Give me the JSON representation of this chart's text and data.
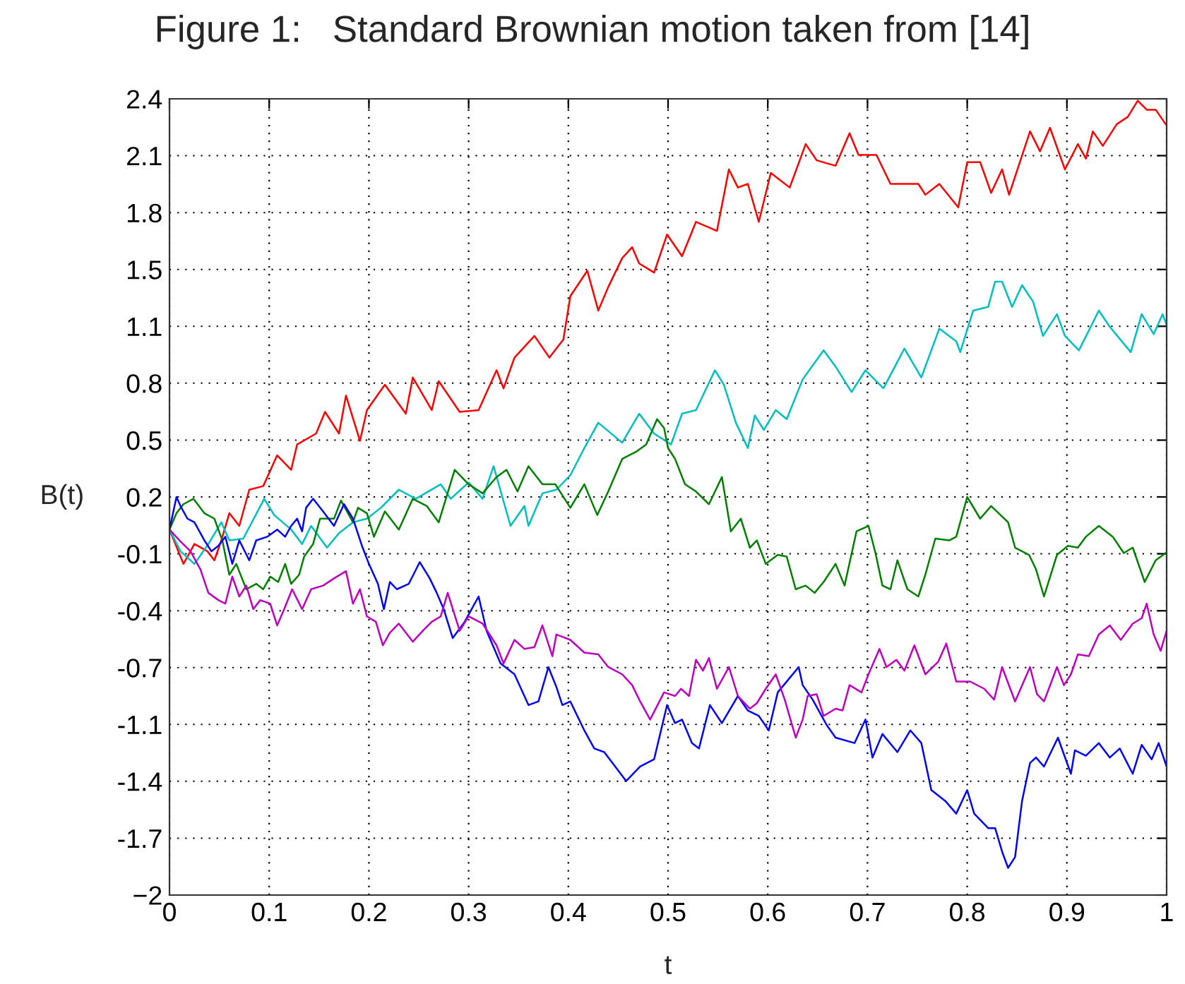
{
  "chart_data": {
    "type": "line",
    "title": "Figure 1:   Standard Brownian motion taken from [14]",
    "xlabel": "t",
    "ylabel": "B(t)",
    "xlim": [
      0,
      1
    ],
    "xticks": [
      0,
      0.1,
      0.2,
      0.3,
      0.4,
      0.5,
      0.6,
      0.7,
      0.8,
      0.9,
      1
    ],
    "ylim": [
      -2,
      2.4
    ],
    "yticks": [
      {
        "value": -2,
        "label": "−2"
      },
      {
        "value": -1.686,
        "label": "-1.7"
      },
      {
        "value": -1.371,
        "label": "-1.4"
      },
      {
        "value": -1.057,
        "label": "-1.1"
      },
      {
        "value": -0.743,
        "label": "-0.7"
      },
      {
        "value": -0.429,
        "label": "-0.4"
      },
      {
        "value": -0.114,
        "label": "-0.1"
      },
      {
        "value": 0.2,
        "label": "0.2"
      },
      {
        "value": 0.514,
        "label": "0.5"
      },
      {
        "value": 0.829,
        "label": "0.8"
      },
      {
        "value": 1.143,
        "label": "1.1"
      },
      {
        "value": 1.457,
        "label": "1.5"
      },
      {
        "value": 1.771,
        "label": "1.8"
      },
      {
        "value": 2.086,
        "label": "2.1"
      },
      {
        "value": 2.4,
        "label": "2.4"
      }
    ],
    "grid": true,
    "line_style": "solid",
    "marker": "none",
    "series": [
      {
        "color": "#ff0000",
        "x": [
          0,
          0.014,
          0.025,
          0.038,
          0.045,
          0.052,
          0.06,
          0.07,
          0.08,
          0.094,
          0.108,
          0.122,
          0.128,
          0.147,
          0.156,
          0.17,
          0.177,
          0.191,
          0.198,
          0.216,
          0.237,
          0.244,
          0.263,
          0.27,
          0.291,
          0.31,
          0.328,
          0.335,
          0.346,
          0.366,
          0.381,
          0.395,
          0.402,
          0.419,
          0.43,
          0.44,
          0.454,
          0.464,
          0.471,
          0.486,
          0.499,
          0.514,
          0.528,
          0.549,
          0.561,
          0.57,
          0.58,
          0.591,
          0.603,
          0.622,
          0.638,
          0.649,
          0.668,
          0.682,
          0.691,
          0.709,
          0.723,
          0.751,
          0.758,
          0.772,
          0.791,
          0.8,
          0.813,
          0.824,
          0.835,
          0.842,
          0.863,
          0.873,
          0.883,
          0.898,
          0.911,
          0.919,
          0.926,
          0.936,
          0.95,
          0.961,
          0.971,
          0.98,
          0.989,
          0.999
        ],
        "values": [
          0.02,
          -0.17,
          -0.06,
          -0.1,
          -0.15,
          -0.04,
          0.11,
          0.04,
          0.24,
          0.26,
          0.43,
          0.35,
          0.49,
          0.55,
          0.67,
          0.55,
          0.76,
          0.51,
          0.68,
          0.82,
          0.66,
          0.86,
          0.68,
          0.84,
          0.67,
          0.68,
          0.9,
          0.8,
          0.97,
          1.09,
          0.97,
          1.07,
          1.31,
          1.45,
          1.23,
          1.36,
          1.52,
          1.58,
          1.49,
          1.44,
          1.65,
          1.53,
          1.72,
          1.67,
          2.01,
          1.91,
          1.93,
          1.72,
          1.99,
          1.91,
          2.15,
          2.06,
          2.03,
          2.21,
          2.09,
          2.09,
          1.93,
          1.93,
          1.87,
          1.93,
          1.8,
          2.05,
          2.05,
          1.88,
          2.01,
          1.87,
          2.22,
          2.11,
          2.24,
          2.01,
          2.15,
          2.07,
          2.22,
          2.14,
          2.26,
          2.3,
          2.39,
          2.34,
          2.34,
          2.26
        ]
      },
      {
        "color": "#00bfbf",
        "x": [
          0,
          0.011,
          0.025,
          0.039,
          0.052,
          0.06,
          0.074,
          0.095,
          0.105,
          0.122,
          0.133,
          0.142,
          0.158,
          0.17,
          0.184,
          0.198,
          0.212,
          0.23,
          0.247,
          0.272,
          0.282,
          0.3,
          0.314,
          0.325,
          0.342,
          0.356,
          0.36,
          0.374,
          0.388,
          0.402,
          0.416,
          0.43,
          0.454,
          0.471,
          0.486,
          0.503,
          0.514,
          0.528,
          0.547,
          0.556,
          0.568,
          0.58,
          0.587,
          0.596,
          0.608,
          0.619,
          0.635,
          0.656,
          0.668,
          0.684,
          0.698,
          0.716,
          0.737,
          0.754,
          0.772,
          0.789,
          0.793,
          0.806,
          0.821,
          0.828,
          0.835,
          0.845,
          0.855,
          0.866,
          0.876,
          0.89,
          0.898,
          0.912,
          0.932,
          0.943,
          0.964,
          0.975,
          0.987,
          0.996,
          1.0
        ],
        "values": [
          0.02,
          -0.1,
          -0.17,
          -0.06,
          0.06,
          -0.04,
          -0.03,
          0.19,
          0.1,
          0.02,
          -0.06,
          0.04,
          -0.08,
          0.0,
          0.06,
          0.08,
          0.14,
          0.24,
          0.19,
          0.27,
          0.19,
          0.28,
          0.19,
          0.37,
          0.04,
          0.15,
          0.04,
          0.22,
          0.24,
          0.32,
          0.47,
          0.61,
          0.5,
          0.66,
          0.55,
          0.49,
          0.66,
          0.68,
          0.9,
          0.82,
          0.61,
          0.47,
          0.65,
          0.57,
          0.68,
          0.63,
          0.85,
          1.01,
          0.92,
          0.78,
          0.9,
          0.8,
          1.02,
          0.86,
          1.13,
          1.06,
          1.0,
          1.23,
          1.25,
          1.39,
          1.39,
          1.25,
          1.37,
          1.28,
          1.09,
          1.21,
          1.09,
          1.01,
          1.23,
          1.14,
          1.0,
          1.21,
          1.1,
          1.21,
          1.15
        ]
      },
      {
        "color": "#007f00",
        "x": [
          0,
          0.007,
          0.014,
          0.024,
          0.035,
          0.045,
          0.053,
          0.06,
          0.067,
          0.077,
          0.087,
          0.094,
          0.101,
          0.109,
          0.116,
          0.122,
          0.13,
          0.135,
          0.144,
          0.151,
          0.165,
          0.172,
          0.184,
          0.189,
          0.198,
          0.205,
          0.216,
          0.23,
          0.244,
          0.258,
          0.27,
          0.286,
          0.3,
          0.314,
          0.328,
          0.338,
          0.349,
          0.36,
          0.374,
          0.387,
          0.402,
          0.416,
          0.429,
          0.44,
          0.454,
          0.468,
          0.478,
          0.489,
          0.496,
          0.5,
          0.507,
          0.517,
          0.528,
          0.541,
          0.554,
          0.563,
          0.573,
          0.582,
          0.589,
          0.598,
          0.61,
          0.619,
          0.628,
          0.638,
          0.647,
          0.656,
          0.668,
          0.677,
          0.689,
          0.701,
          0.708,
          0.715,
          0.723,
          0.73,
          0.74,
          0.751,
          0.758,
          0.768,
          0.782,
          0.789,
          0.8,
          0.813,
          0.824,
          0.841,
          0.848,
          0.862,
          0.869,
          0.877,
          0.89,
          0.901,
          0.911,
          0.919,
          0.932,
          0.946,
          0.957,
          0.966,
          0.978,
          0.989,
          0.999
        ],
        "values": [
          0.02,
          0.11,
          0.16,
          0.19,
          0.11,
          0.08,
          -0.04,
          -0.23,
          -0.17,
          -0.31,
          -0.28,
          -0.31,
          -0.24,
          -0.27,
          -0.17,
          -0.28,
          -0.23,
          -0.13,
          -0.06,
          0.08,
          0.08,
          0.18,
          0.06,
          0.14,
          0.11,
          -0.02,
          0.12,
          0.02,
          0.19,
          0.15,
          0.06,
          0.35,
          0.27,
          0.22,
          0.31,
          0.35,
          0.23,
          0.37,
          0.27,
          0.27,
          0.14,
          0.27,
          0.1,
          0.23,
          0.41,
          0.45,
          0.49,
          0.63,
          0.58,
          0.47,
          0.41,
          0.27,
          0.23,
          0.16,
          0.31,
          0.01,
          0.08,
          -0.08,
          -0.04,
          -0.17,
          -0.12,
          -0.13,
          -0.31,
          -0.29,
          -0.33,
          -0.27,
          -0.17,
          -0.29,
          0.01,
          0.04,
          -0.11,
          -0.29,
          -0.31,
          -0.15,
          -0.31,
          -0.35,
          -0.23,
          -0.03,
          -0.04,
          -0.02,
          0.2,
          0.08,
          0.15,
          0.06,
          -0.08,
          -0.12,
          -0.2,
          -0.35,
          -0.12,
          -0.07,
          -0.08,
          -0.02,
          0.04,
          -0.02,
          -0.11,
          -0.08,
          -0.27,
          -0.15,
          -0.11
        ]
      },
      {
        "color": "#0000ff",
        "x": [
          0,
          0.007,
          0.011,
          0.018,
          0.025,
          0.035,
          0.042,
          0.049,
          0.056,
          0.063,
          0.07,
          0.08,
          0.087,
          0.098,
          0.108,
          0.116,
          0.122,
          0.128,
          0.133,
          0.137,
          0.144,
          0.154,
          0.165,
          0.175,
          0.184,
          0.193,
          0.2,
          0.209,
          0.215,
          0.221,
          0.228,
          0.24,
          0.251,
          0.261,
          0.268,
          0.275,
          0.284,
          0.296,
          0.31,
          0.318,
          0.332,
          0.346,
          0.36,
          0.37,
          0.38,
          0.388,
          0.394,
          0.402,
          0.416,
          0.426,
          0.436,
          0.447,
          0.458,
          0.472,
          0.486,
          0.499,
          0.507,
          0.514,
          0.524,
          0.531,
          0.542,
          0.554,
          0.57,
          0.58,
          0.591,
          0.601,
          0.61,
          0.622,
          0.631,
          0.635,
          0.645,
          0.659,
          0.668,
          0.687,
          0.698,
          0.705,
          0.715,
          0.73,
          0.743,
          0.754,
          0.764,
          0.778,
          0.789,
          0.8,
          0.807,
          0.821,
          0.828,
          0.835,
          0.841,
          0.848,
          0.855,
          0.863,
          0.869,
          0.877,
          0.891,
          0.904,
          0.908,
          0.919,
          0.932,
          0.943,
          0.953,
          0.966,
          0.975,
          0.985,
          0.992,
          1.0
        ],
        "values": [
          0.02,
          0.2,
          0.15,
          0.08,
          0.06,
          -0.04,
          -0.1,
          -0.07,
          -0.02,
          -0.17,
          -0.04,
          -0.15,
          -0.04,
          -0.02,
          0.02,
          -0.02,
          0.04,
          0.08,
          0.01,
          0.14,
          0.19,
          0.12,
          0.04,
          0.16,
          0.08,
          -0.07,
          -0.17,
          -0.28,
          -0.42,
          -0.27,
          -0.31,
          -0.28,
          -0.16,
          -0.25,
          -0.33,
          -0.42,
          -0.58,
          -0.49,
          -0.35,
          -0.54,
          -0.72,
          -0.78,
          -0.95,
          -0.93,
          -0.74,
          -0.85,
          -0.95,
          -0.93,
          -1.09,
          -1.19,
          -1.21,
          -1.29,
          -1.37,
          -1.29,
          -1.25,
          -0.95,
          -1.05,
          -1.03,
          -1.16,
          -1.19,
          -0.95,
          -1.05,
          -0.9,
          -0.98,
          -1.01,
          -1.09,
          -0.88,
          -0.8,
          -0.74,
          -0.84,
          -0.92,
          -1.06,
          -1.13,
          -1.16,
          -1.03,
          -1.24,
          -1.11,
          -1.21,
          -1.09,
          -1.16,
          -1.42,
          -1.48,
          -1.55,
          -1.42,
          -1.55,
          -1.63,
          -1.63,
          -1.76,
          -1.85,
          -1.79,
          -1.48,
          -1.27,
          -1.24,
          -1.29,
          -1.13,
          -1.33,
          -1.2,
          -1.23,
          -1.16,
          -1.24,
          -1.19,
          -1.33,
          -1.17,
          -1.25,
          -1.16,
          -1.29
        ]
      },
      {
        "color": "#bf00bf",
        "x": [
          0,
          0.01,
          0.021,
          0.031,
          0.039,
          0.049,
          0.056,
          0.063,
          0.07,
          0.077,
          0.084,
          0.091,
          0.101,
          0.108,
          0.115,
          0.123,
          0.133,
          0.142,
          0.154,
          0.165,
          0.177,
          0.184,
          0.191,
          0.198,
          0.207,
          0.214,
          0.221,
          0.23,
          0.244,
          0.254,
          0.263,
          0.272,
          0.279,
          0.291,
          0.3,
          0.314,
          0.328,
          0.335,
          0.346,
          0.356,
          0.366,
          0.374,
          0.384,
          0.388,
          0.402,
          0.416,
          0.43,
          0.44,
          0.454,
          0.464,
          0.472,
          0.482,
          0.496,
          0.507,
          0.513,
          0.521,
          0.528,
          0.535,
          0.541,
          0.549,
          0.561,
          0.57,
          0.582,
          0.589,
          0.598,
          0.608,
          0.617,
          0.628,
          0.635,
          0.64,
          0.649,
          0.656,
          0.668,
          0.675,
          0.682,
          0.694,
          0.701,
          0.712,
          0.719,
          0.729,
          0.737,
          0.747,
          0.758,
          0.771,
          0.779,
          0.789,
          0.803,
          0.817,
          0.827,
          0.835,
          0.848,
          0.863,
          0.87,
          0.877,
          0.89,
          0.897,
          0.904,
          0.911,
          0.922,
          0.932,
          0.943,
          0.954,
          0.966,
          0.975,
          0.98,
          0.987,
          0.994,
          1.0
        ],
        "values": [
          0.02,
          -0.04,
          -0.1,
          -0.2,
          -0.33,
          -0.37,
          -0.39,
          -0.24,
          -0.35,
          -0.29,
          -0.42,
          -0.37,
          -0.39,
          -0.51,
          -0.42,
          -0.31,
          -0.42,
          -0.31,
          -0.29,
          -0.25,
          -0.21,
          -0.39,
          -0.31,
          -0.46,
          -0.49,
          -0.62,
          -0.55,
          -0.5,
          -0.6,
          -0.54,
          -0.49,
          -0.46,
          -0.33,
          -0.54,
          -0.46,
          -0.5,
          -0.62,
          -0.72,
          -0.59,
          -0.64,
          -0.63,
          -0.51,
          -0.68,
          -0.56,
          -0.59,
          -0.66,
          -0.67,
          -0.74,
          -0.78,
          -0.84,
          -0.93,
          -1.03,
          -0.88,
          -0.9,
          -0.86,
          -0.9,
          -0.7,
          -0.76,
          -0.69,
          -0.86,
          -0.74,
          -0.9,
          -0.97,
          -0.94,
          -0.86,
          -0.78,
          -0.92,
          -1.13,
          -1.03,
          -0.9,
          -0.89,
          -1.01,
          -0.97,
          -0.98,
          -0.84,
          -0.88,
          -0.78,
          -0.64,
          -0.74,
          -0.7,
          -0.76,
          -0.62,
          -0.78,
          -0.71,
          -0.61,
          -0.82,
          -0.82,
          -0.86,
          -0.92,
          -0.74,
          -0.93,
          -0.74,
          -0.89,
          -0.93,
          -0.74,
          -0.84,
          -0.78,
          -0.67,
          -0.68,
          -0.56,
          -0.51,
          -0.59,
          -0.5,
          -0.47,
          -0.39,
          -0.56,
          -0.65,
          -0.54
        ]
      }
    ]
  }
}
